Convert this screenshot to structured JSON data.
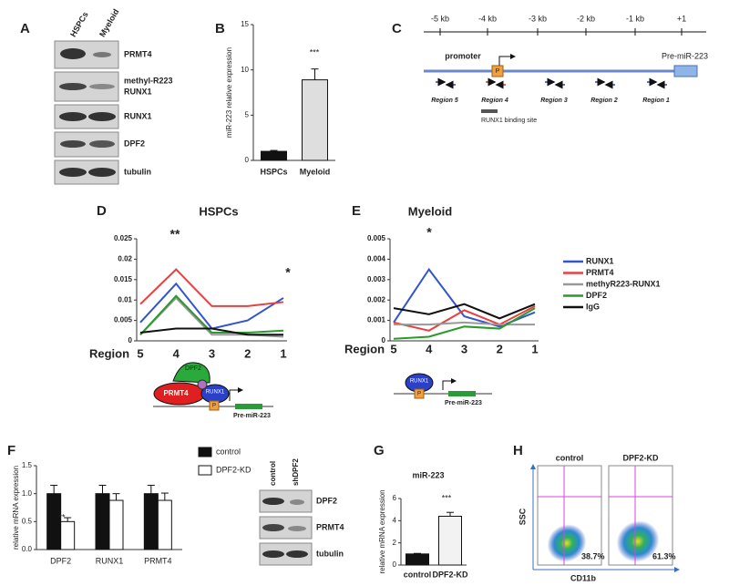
{
  "panel_labels": [
    "A",
    "B",
    "C",
    "D",
    "E",
    "F",
    "G",
    "H"
  ],
  "blot_a": {
    "columns": [
      "HSPCs",
      "Myeloid"
    ],
    "rows": [
      [
        "PRMT4"
      ],
      [
        "methyl-R223",
        "RUNX1"
      ],
      [
        "RUNX1"
      ],
      [
        "DPF2"
      ],
      [
        "tubulin"
      ]
    ]
  },
  "diagram_c": {
    "ruler": [
      "-5 kb",
      "-4 kb",
      "-3 kb",
      "-2 kb",
      "-1 kb",
      "+1"
    ],
    "promoter": "promoter",
    "promoter_box": "P",
    "gene": "Pre-miR-223",
    "regions": [
      "Region 5",
      "Region 4",
      "Region 3",
      "Region 2",
      "Region 1"
    ],
    "binding_site": "RUNX1 binding site"
  },
  "cartoon_d": {
    "proteins": [
      "DPF2",
      "PRMT4",
      "RUNX1"
    ],
    "box": "P",
    "gene": "Pre-miR-223"
  },
  "cartoon_e": {
    "protein": "RUNX1",
    "box": "P",
    "gene": "Pre-miR-223"
  },
  "blot_f": {
    "columns": [
      "control",
      "shDPF2"
    ],
    "rows": [
      "DPF2",
      "PRMT4",
      "tubulin"
    ]
  },
  "flow_h": {
    "panels": [
      {
        "title": "control",
        "percent": "38.7%"
      },
      {
        "title": "DPF2-KD",
        "percent": "61.3%"
      }
    ],
    "y_label": "SSC",
    "x_label": "CD11b"
  },
  "chart_data": [
    {
      "type": "bar",
      "y_label": "miR-223 relative expression",
      "categories": [
        "HSPCs",
        "Myeloid"
      ],
      "values": [
        1,
        8.9
      ],
      "errors": [
        0.1,
        1.2
      ],
      "colors": [
        "#111111",
        "#dedede"
      ],
      "ylim": [
        0,
        15
      ],
      "yticks": [
        0,
        5,
        10,
        15
      ],
      "annotations": [
        "***"
      ]
    },
    {
      "type": "line",
      "title": "HSPCs",
      "x_label": "Region",
      "categories": [
        "5",
        "4",
        "3",
        "2",
        "1"
      ],
      "ylim": [
        0,
        0.025
      ],
      "yticks": [
        0,
        0.005,
        0.01,
        0.015,
        0.02,
        0.025
      ],
      "annotations": [
        "**",
        "*"
      ],
      "series": [
        {
          "name": "RUNX1",
          "color": "#3355cc",
          "values": [
            0.0045,
            0.014,
            0.003,
            0.005,
            0.0105
          ]
        },
        {
          "name": "PRMT4",
          "color": "#e84040",
          "values": [
            0.009,
            0.0175,
            0.0085,
            0.0085,
            0.0095
          ]
        },
        {
          "name": "methyR223-RUNX1",
          "color": "#999999",
          "values": [
            0.0015,
            0.0105,
            0.0015,
            0.0015,
            0.001
          ]
        },
        {
          "name": "DPF2",
          "color": "#2a9a2a",
          "values": [
            0.0015,
            0.011,
            0.002,
            0.002,
            0.0025
          ]
        },
        {
          "name": "IgG",
          "color": "#111111",
          "values": [
            0.002,
            0.003,
            0.003,
            0.0015,
            0.0015
          ]
        }
      ]
    },
    {
      "type": "line",
      "title": "Myeloid",
      "x_label": "Region",
      "categories": [
        "5",
        "4",
        "3",
        "2",
        "1"
      ],
      "ylim": [
        0,
        0.005
      ],
      "yticks": [
        0,
        0.001,
        0.002,
        0.003,
        0.004,
        0.005
      ],
      "annotations": [
        "*"
      ],
      "series": [
        {
          "color": "#3355cc",
          "values": [
            0.0009,
            0.0035,
            0.0012,
            0.0007,
            0.0014
          ]
        },
        {
          "color": "#e84040",
          "values": [
            0.0009,
            0.0005,
            0.0015,
            0.0008,
            0.0017
          ]
        },
        {
          "color": "#999999",
          "values": [
            0.0008,
            0.0008,
            0.0009,
            0.0008,
            0.0008
          ]
        },
        {
          "color": "#2a9a2a",
          "values": [
            0.0001,
            0.0002,
            0.0007,
            0.0006,
            0.0016
          ]
        },
        {
          "color": "#111111",
          "values": [
            0.0016,
            0.0013,
            0.0018,
            0.0011,
            0.0018
          ]
        }
      ]
    },
    {
      "type": "grouped-bar",
      "y_label": "relative mRNA expression",
      "categories": [
        "DPF2",
        "RUNX1",
        "PRMT4"
      ],
      "ylim": [
        0,
        1.5
      ],
      "yticks": [
        {
          "value": 0,
          "label": "0.0"
        },
        {
          "value": 0.5,
          "label": "0.5"
        },
        {
          "value": 1,
          "label": "1.0"
        },
        {
          "value": 1.5,
          "label": "1.5"
        }
      ],
      "annotations": [
        "**"
      ],
      "series": [
        {
          "name": "control",
          "color": "#111111",
          "values": [
            1,
            1,
            1
          ],
          "errors": [
            0.15,
            0.15,
            0.15
          ]
        },
        {
          "name": "DPF2-KD",
          "color": "#ffffff",
          "values": [
            0.5,
            0.88,
            0.88
          ],
          "errors": [
            0.07,
            0.12,
            0.13
          ]
        }
      ]
    },
    {
      "type": "bar",
      "title": "miR-223",
      "y_label": "relative mRNA expression",
      "categories": [
        "control",
        "DPF2-KD"
      ],
      "values": [
        1,
        4.4
      ],
      "errors": [
        0.05,
        0.35
      ],
      "colors": [
        "#111111",
        "#f2f2f2"
      ],
      "ylim": [
        0,
        6
      ],
      "yticks": [
        0,
        2,
        4,
        6
      ],
      "annotations": [
        "***"
      ]
    }
  ]
}
